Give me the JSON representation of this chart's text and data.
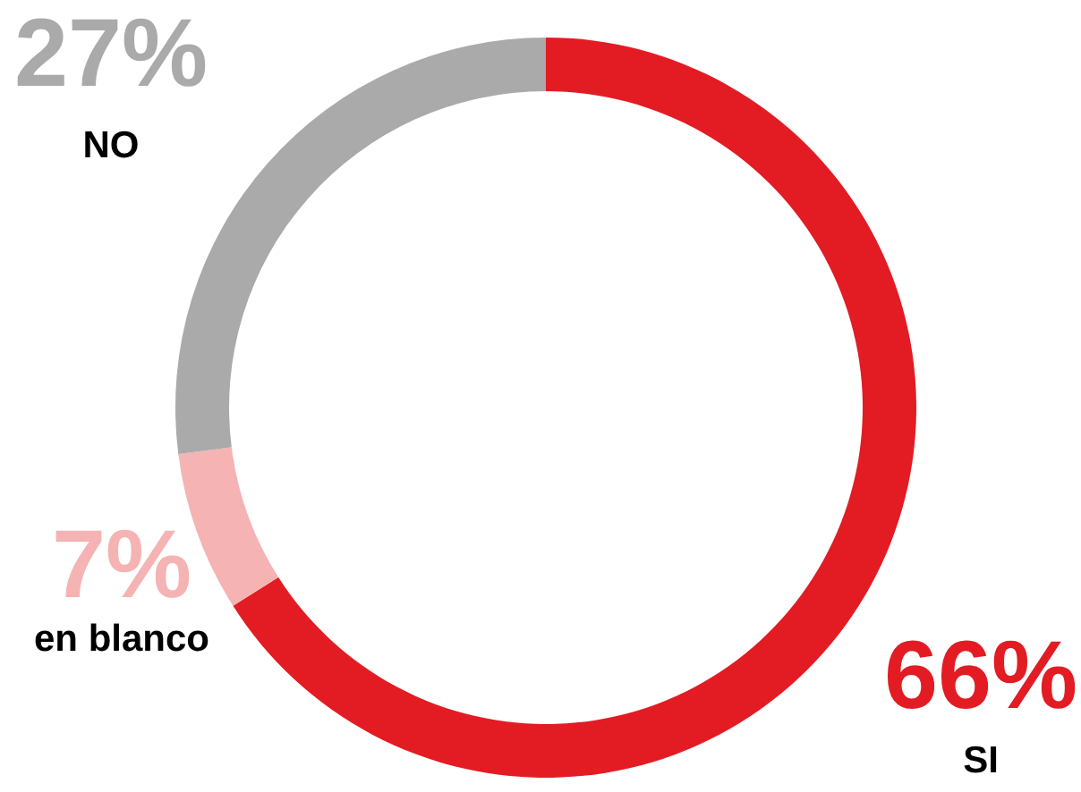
{
  "chart_data": {
    "type": "donut",
    "categories": [
      "SI",
      "en blanco",
      "NO"
    ],
    "values": [
      66,
      7,
      27
    ],
    "colors": [
      "#e31b23",
      "#f5b3b3",
      "#aaaaaa"
    ],
    "value_labels": [
      "66%",
      "7%",
      "27%"
    ]
  }
}
